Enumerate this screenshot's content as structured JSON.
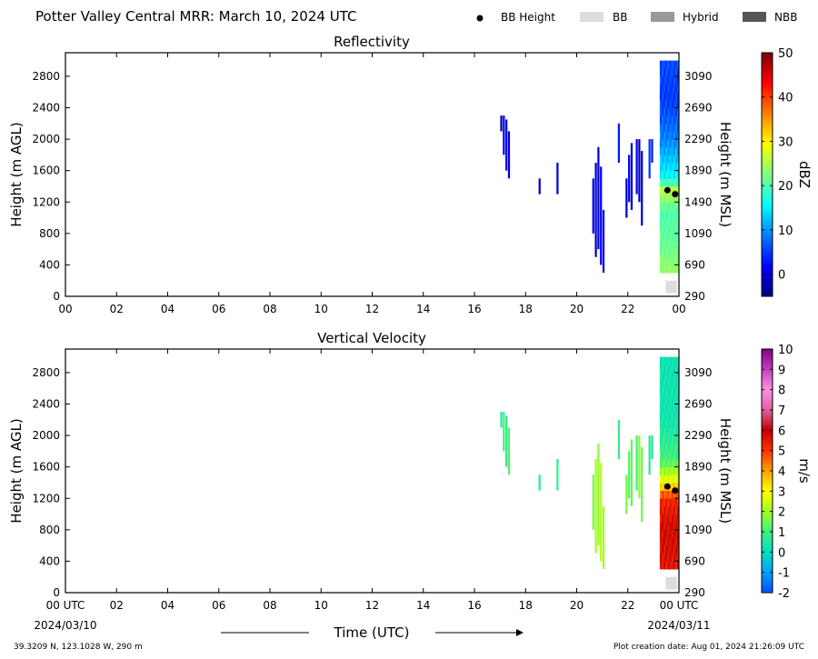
{
  "header": {
    "title": "Potter Valley Central MRR:  March 10, 2024 UTC"
  },
  "legend": {
    "bb_height": "BB Height",
    "bb": "BB",
    "hybrid": "Hybrid",
    "nbb": "NBB",
    "colors": {
      "bb": "#dddddd",
      "hybrid": "#999999",
      "nbb": "#555555",
      "bb_height": "#000000"
    }
  },
  "footer": {
    "location": "39.3209 N, 123.1028 W, 290 m",
    "creation": "Plot creation date: Aug 01, 2024 21:26:09 UTC",
    "xlabel": "Time (UTC)",
    "start_date": "2024/03/10",
    "end_date": "2024/03/11"
  },
  "chart_data": [
    {
      "type": "heatmap",
      "title": "Reflectivity",
      "ylabel": "Height (m AGL)",
      "y2label": "Height (m MSL)",
      "xlim": [
        0,
        24
      ],
      "ylim": [
        0,
        3100
      ],
      "x_ticks": [
        "00",
        "02",
        "04",
        "06",
        "08",
        "10",
        "12",
        "14",
        "16",
        "18",
        "20",
        "22",
        "00"
      ],
      "y_ticks": [
        "0",
        "400",
        "800",
        "1200",
        "1600",
        "2000",
        "2400",
        "2800"
      ],
      "y2_ticks": [
        "290",
        "690",
        "1090",
        "1490",
        "1890",
        "2290",
        "2690",
        "3090"
      ],
      "colorbar": {
        "label": "dBZ",
        "range": [
          -5,
          50
        ],
        "ticks": [
          "0",
          "10",
          "20",
          "30",
          "40",
          "50"
        ],
        "colors": [
          "#00007f",
          "#0000ff",
          "#007fff",
          "#00ffff",
          "#7fff7f",
          "#ffff00",
          "#ff7f00",
          "#ff0000",
          "#7f0000"
        ]
      },
      "echoes": [
        {
          "x": 17.05,
          "y0": 2100,
          "y1": 2300,
          "v": -3
        },
        {
          "x": 17.15,
          "y0": 1800,
          "y1": 2300,
          "v": 1
        },
        {
          "x": 17.25,
          "y0": 1600,
          "y1": 2250,
          "v": 2
        },
        {
          "x": 17.35,
          "y0": 1500,
          "y1": 2100,
          "v": 0
        },
        {
          "x": 18.55,
          "y0": 1300,
          "y1": 1500,
          "v": -1
        },
        {
          "x": 19.25,
          "y0": 1300,
          "y1": 1700,
          "v": 0
        },
        {
          "x": 20.65,
          "y0": 800,
          "y1": 1500,
          "v": 1
        },
        {
          "x": 20.75,
          "y0": 500,
          "y1": 1700,
          "v": -1
        },
        {
          "x": 20.85,
          "y0": 600,
          "y1": 1900,
          "v": 0
        },
        {
          "x": 20.95,
          "y0": 400,
          "y1": 1650,
          "v": 2
        },
        {
          "x": 21.05,
          "y0": 300,
          "y1": 1100,
          "v": 1
        },
        {
          "x": 21.65,
          "y0": 1700,
          "y1": 2200,
          "v": 3
        },
        {
          "x": 21.95,
          "y0": 1000,
          "y1": 1500,
          "v": 0
        },
        {
          "x": 22.05,
          "y0": 1200,
          "y1": 1800,
          "v": 2
        },
        {
          "x": 22.15,
          "y0": 1100,
          "y1": 1950,
          "v": -1
        },
        {
          "x": 22.35,
          "y0": 1300,
          "y1": 2000,
          "v": 1
        },
        {
          "x": 22.45,
          "y0": 1200,
          "y1": 2000,
          "v": -2
        },
        {
          "x": 22.55,
          "y0": 900,
          "y1": 1850,
          "v": 0
        },
        {
          "x": 22.85,
          "y0": 1500,
          "y1": 2000,
          "v": 5
        },
        {
          "x": 22.95,
          "y0": 1700,
          "y1": 2000,
          "v": 3
        }
      ],
      "profiles": {
        "x_start": 23.25,
        "x_end": 24.0,
        "bottom": 300,
        "top": 3000,
        "levels": [
          {
            "h": 300,
            "v": 24
          },
          {
            "h": 700,
            "v": 21
          },
          {
            "h": 1100,
            "v": 20
          },
          {
            "h": 1350,
            "v": 26
          },
          {
            "h": 1500,
            "v": 16
          },
          {
            "h": 2000,
            "v": 9
          },
          {
            "h": 2500,
            "v": 5
          },
          {
            "h": 3000,
            "v": 6
          }
        ]
      },
      "bb_points": [
        {
          "x": 23.55,
          "y": 1350
        },
        {
          "x": 23.85,
          "y": 1300
        }
      ],
      "bb_markers": [
        {
          "x": 23.7,
          "y0": 40,
          "y1": 200
        }
      ]
    },
    {
      "type": "heatmap",
      "title": "Vertical Velocity",
      "ylabel": "Height (m AGL)",
      "y2label": "Height (m MSL)",
      "xlim": [
        0,
        24
      ],
      "ylim": [
        0,
        3100
      ],
      "x_ticks": [
        "00 UTC",
        "02",
        "04",
        "06",
        "08",
        "10",
        "12",
        "14",
        "16",
        "18",
        "20",
        "22",
        "00 UTC"
      ],
      "y_ticks": [
        "0",
        "400",
        "800",
        "1200",
        "1600",
        "2000",
        "2400",
        "2800"
      ],
      "y2_ticks": [
        "290",
        "690",
        "1090",
        "1490",
        "1890",
        "2290",
        "2690",
        "3090"
      ],
      "colorbar": {
        "label": "m/s",
        "range": [
          -2,
          10
        ],
        "ticks": [
          "-2",
          "-1",
          "0",
          "1",
          "2",
          "3",
          "4",
          "5",
          "6",
          "7",
          "8",
          "9",
          "10"
        ],
        "colors": [
          "#0050ff",
          "#00a0ff",
          "#00e0c0",
          "#40f080",
          "#a0ff20",
          "#ffff00",
          "#ffa000",
          "#ff3000",
          "#c00000",
          "#e060a0",
          "#ff90e0",
          "#c040c0",
          "#800080"
        ]
      },
      "echoes": [
        {
          "x": 17.05,
          "y0": 2100,
          "y1": 2300,
          "v": 0.5
        },
        {
          "x": 17.15,
          "y0": 1800,
          "y1": 2300,
          "v": 1.0
        },
        {
          "x": 17.25,
          "y0": 1600,
          "y1": 2250,
          "v": 0.8
        },
        {
          "x": 17.35,
          "y0": 1500,
          "y1": 2100,
          "v": 1.2
        },
        {
          "x": 18.55,
          "y0": 1300,
          "y1": 1500,
          "v": 0.6
        },
        {
          "x": 19.25,
          "y0": 1300,
          "y1": 1700,
          "v": 0.8
        },
        {
          "x": 20.65,
          "y0": 800,
          "y1": 1500,
          "v": 1.6
        },
        {
          "x": 20.75,
          "y0": 500,
          "y1": 1700,
          "v": 2.0
        },
        {
          "x": 20.85,
          "y0": 600,
          "y1": 1900,
          "v": 1.8
        },
        {
          "x": 20.95,
          "y0": 400,
          "y1": 1650,
          "v": 2.2
        },
        {
          "x": 21.05,
          "y0": 300,
          "y1": 1100,
          "v": 2.0
        },
        {
          "x": 21.65,
          "y0": 1700,
          "y1": 2200,
          "v": 0.8
        },
        {
          "x": 21.95,
          "y0": 1000,
          "y1": 1500,
          "v": 1.6
        },
        {
          "x": 22.05,
          "y0": 1200,
          "y1": 1800,
          "v": 1.2
        },
        {
          "x": 22.15,
          "y0": 1100,
          "y1": 1950,
          "v": 1.4
        },
        {
          "x": 22.35,
          "y0": 1300,
          "y1": 2000,
          "v": 1.0
        },
        {
          "x": 22.45,
          "y0": 1200,
          "y1": 2000,
          "v": 1.8
        },
        {
          "x": 22.55,
          "y0": 900,
          "y1": 1850,
          "v": 1.5
        },
        {
          "x": 22.85,
          "y0": 1500,
          "y1": 2000,
          "v": 0.7
        },
        {
          "x": 22.95,
          "y0": 1700,
          "y1": 2000,
          "v": 0.4
        }
      ],
      "profiles": {
        "x_start": 23.25,
        "x_end": 24.0,
        "bottom": 300,
        "top": 3000,
        "levels": [
          {
            "h": 300,
            "v": 5.5
          },
          {
            "h": 800,
            "v": 5.8
          },
          {
            "h": 1200,
            "v": 5.2
          },
          {
            "h": 1400,
            "v": 3.0
          },
          {
            "h": 1700,
            "v": 1.0
          },
          {
            "h": 2200,
            "v": 0.3
          },
          {
            "h": 3000,
            "v": 0.2
          }
        ]
      },
      "bb_points": [
        {
          "x": 23.55,
          "y": 1350
        },
        {
          "x": 23.85,
          "y": 1300
        }
      ],
      "bb_markers": [
        {
          "x": 23.7,
          "y0": 40,
          "y1": 200
        }
      ]
    }
  ]
}
